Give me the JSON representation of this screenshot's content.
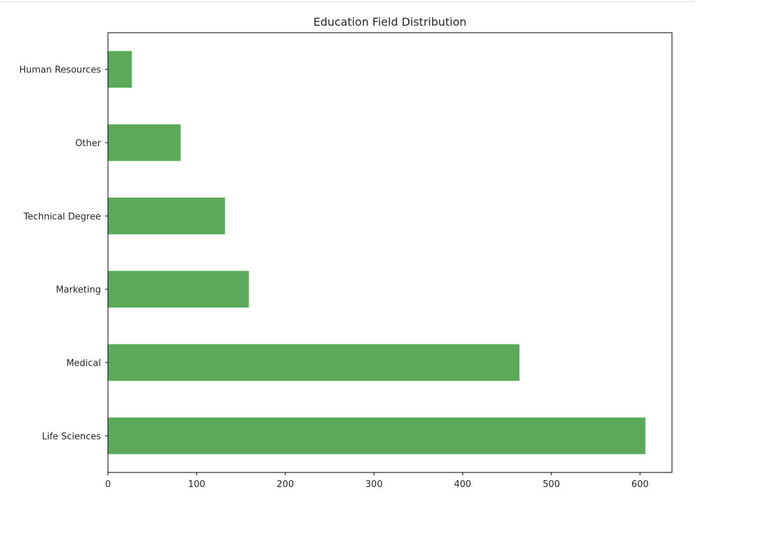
{
  "chart_data": {
    "type": "bar",
    "orientation": "horizontal",
    "title": "Education Field Distribution",
    "xlabel": "",
    "ylabel": "",
    "categories": [
      "Life Sciences",
      "Medical",
      "Marketing",
      "Technical Degree",
      "Other",
      "Human Resources"
    ],
    "values": [
      606,
      464,
      159,
      132,
      82,
      27
    ],
    "xlim": [
      0,
      636
    ],
    "xticks": [
      0,
      100,
      200,
      300,
      400,
      500,
      600
    ],
    "grid": false,
    "legend": "none",
    "bar_color": "#5aaa5a"
  }
}
